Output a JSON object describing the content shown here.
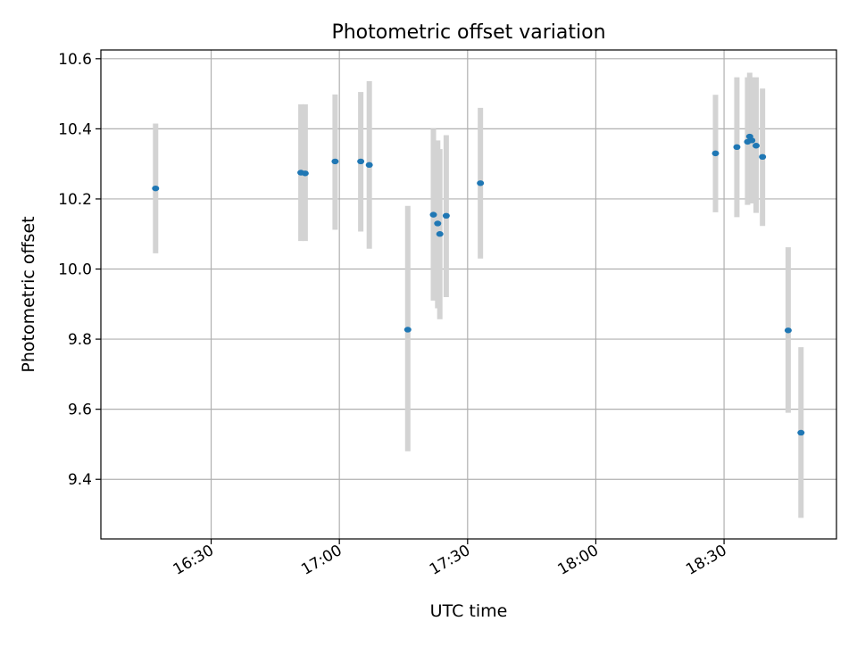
{
  "chart_data": {
    "type": "scatter",
    "title": "Photometric offset variation",
    "xlabel": "UTC time",
    "ylabel": "Photometric offset",
    "x_ticks": [
      "16:30",
      "17:00",
      "17:30",
      "18:00",
      "18:30"
    ],
    "x_tick_minutes": [
      990,
      1020,
      1050,
      1080,
      1110
    ],
    "xlim_minutes": [
      964.2,
      1136.3
    ],
    "y_ticks": [
      "9.4",
      "9.6",
      "9.8",
      "10.0",
      "10.2",
      "10.4",
      "10.6"
    ],
    "ylim": [
      9.23,
      10.625
    ],
    "grid": true,
    "colors": {
      "point": "#1f77b4",
      "errorbar": "#d3d3d3",
      "grid": "#b0b0b0"
    },
    "points": [
      {
        "t": "16:17",
        "y": 10.23,
        "lo": 10.045,
        "hi": 10.415
      },
      {
        "t": "16:51",
        "y": 10.275,
        "lo": 10.08,
        "hi": 10.47
      },
      {
        "t": "16:52",
        "y": 10.273,
        "lo": 10.08,
        "hi": 10.47
      },
      {
        "t": "16:59",
        "y": 10.307,
        "lo": 10.112,
        "hi": 10.498
      },
      {
        "t": "17:05",
        "y": 10.307,
        "lo": 10.107,
        "hi": 10.505
      },
      {
        "t": "17:07",
        "y": 10.297,
        "lo": 10.058,
        "hi": 10.536
      },
      {
        "t": "17:16",
        "y": 9.827,
        "lo": 9.48,
        "hi": 10.18
      },
      {
        "t": "17:22",
        "y": 10.155,
        "lo": 9.91,
        "hi": 10.4
      },
      {
        "t": "17:23",
        "y": 10.13,
        "lo": 9.888,
        "hi": 10.367
      },
      {
        "t": "17:23.5",
        "y": 10.1,
        "lo": 9.857,
        "hi": 10.342
      },
      {
        "t": "17:25",
        "y": 10.152,
        "lo": 9.92,
        "hi": 10.382
      },
      {
        "t": "17:33",
        "y": 10.245,
        "lo": 10.03,
        "hi": 10.46
      },
      {
        "t": "18:28",
        "y": 10.33,
        "lo": 10.162,
        "hi": 10.497
      },
      {
        "t": "18:33",
        "y": 10.348,
        "lo": 10.148,
        "hi": 10.547
      },
      {
        "t": "18:35.5",
        "y": 10.363,
        "lo": 10.183,
        "hi": 10.547
      },
      {
        "t": "18:36",
        "y": 10.378,
        "lo": 10.195,
        "hi": 10.56
      },
      {
        "t": "18:36.5",
        "y": 10.367,
        "lo": 10.187,
        "hi": 10.547
      },
      {
        "t": "18:37.5",
        "y": 10.352,
        "lo": 10.16,
        "hi": 10.547
      },
      {
        "t": "18:39",
        "y": 10.32,
        "lo": 10.123,
        "hi": 10.515
      },
      {
        "t": "18:45",
        "y": 9.825,
        "lo": 9.59,
        "hi": 10.062
      },
      {
        "t": "18:48",
        "y": 9.533,
        "lo": 9.29,
        "hi": 9.777
      }
    ]
  }
}
